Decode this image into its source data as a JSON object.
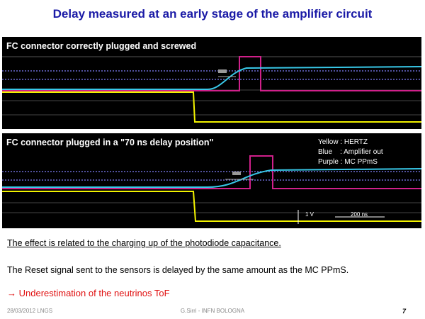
{
  "title": "Delay measured at an early stage of the amplifier circuit",
  "scope1": {
    "label": "FC connector correctly plugged and screwed"
  },
  "scope2": {
    "label": "FC connector plugged in a \"70 ns delay position\"",
    "legend": [
      "Yellow : HERTZ",
      "Blue    : Amplifier out",
      "Purple : MC PPmS"
    ],
    "voltage_scale": "1 V",
    "time_scale": "200 ns"
  },
  "colors": {
    "title": "#1a1aa6",
    "yellow": "#f2f200",
    "blue": "#38c8e8",
    "purple": "#d0208a",
    "highlight": "#e01010"
  },
  "text": {
    "line1": "The effect is related to the charging up of the photodiode capacitance.",
    "line2": "The Reset signal sent to the sensors is delayed by the same amount as the MC PPmS.",
    "line3": "→ Underestimation of the neutrinos ToF"
  },
  "footer": {
    "date": "28/03/2012  LNGS",
    "author": "G.Sirri - INFN BOLOGNA",
    "page": "7"
  }
}
